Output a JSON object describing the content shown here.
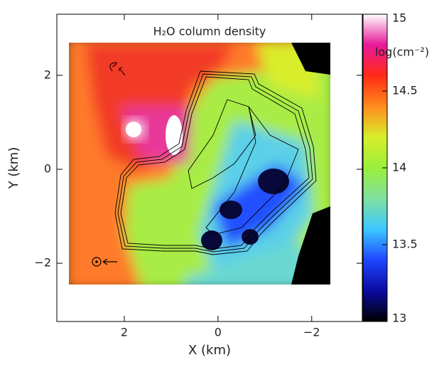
{
  "chart_data": {
    "type": "heatmap",
    "title": "H₂O column density",
    "xlabel": "X (km)",
    "ylabel": "Y (km)",
    "xlim": [
      3.44,
      -3.08
    ],
    "xticks": [
      2,
      0,
      {
        "value": -2,
        "label": "−2"
      }
    ],
    "ylim": [
      -3.24,
      3.3
    ],
    "yticks": [
      {
        "value": -2,
        "label": "−2"
      },
      0,
      2
    ],
    "colorbar": {
      "label": "log(cm⁻²)",
      "lim": [
        13,
        15
      ],
      "ticks": [
        13,
        13.5,
        14,
        14.5,
        15
      ],
      "colors": [
        "#000000",
        "#0a0aa0",
        "#1e46ff",
        "#3cc8ff",
        "#7fe0a0",
        "#9aef3c",
        "#d8ee2a",
        "#ff8c1e",
        "#ff2a14",
        "#e8189a",
        "#ffffff"
      ]
    }
  }
}
